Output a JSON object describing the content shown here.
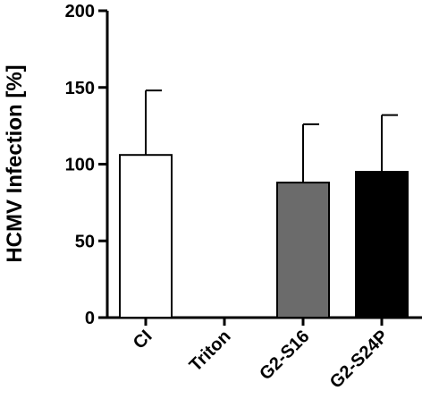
{
  "chart_data": {
    "type": "bar",
    "title": "",
    "xlabel": "",
    "ylabel": "HCMV Infection [%]",
    "ylim": [
      0,
      200
    ],
    "yticks": [
      0,
      50,
      100,
      150,
      200
    ],
    "ytick_labels": [
      "0",
      "50",
      "100",
      "150",
      "200"
    ],
    "categories": [
      "CI",
      "Triton",
      "G2-S16",
      "G2-S24P"
    ],
    "values": [
      106,
      0,
      88,
      95
    ],
    "error_upper": [
      42,
      0,
      38,
      37
    ],
    "bar_colors": [
      "#ffffff",
      "#ffffff",
      "#6b6b6b",
      "#000000"
    ],
    "grid": false,
    "legend": "none"
  }
}
